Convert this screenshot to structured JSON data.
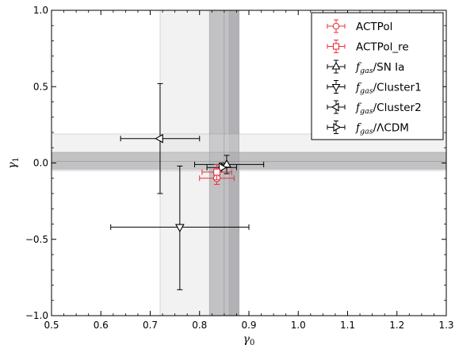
{
  "chart_data": {
    "type": "scatter",
    "title": "",
    "xlabel": "γ0",
    "ylabel": "γ1",
    "xlim": [
      0.5,
      1.3
    ],
    "ylim": [
      -1.0,
      1.0
    ],
    "xticks": [
      "0.5",
      "0.6",
      "0.7",
      "0.8",
      "0.9",
      "1.0",
      "1.1",
      "1.2",
      "1.3"
    ],
    "yticks": [
      "−1.0",
      "−0.5",
      "0.0",
      "0.5",
      "1.0"
    ],
    "grid": false,
    "legend_position": "top-right",
    "bands": [
      {
        "axis": "x",
        "range": [
          0.82,
          0.88
        ],
        "color": "#9a9a9e",
        "opacity": 0.7
      },
      {
        "axis": "y",
        "range": [
          -0.04,
          0.07
        ],
        "color": "#9a9a9e",
        "opacity": 0.7
      },
      {
        "axis": "x",
        "range": [
          0.72,
          0.86
        ],
        "color": "#e2e2e2",
        "opacity": 0.45
      },
      {
        "axis": "y",
        "range": [
          -0.05,
          0.19
        ],
        "color": "#e2e2e2",
        "opacity": 0.45
      },
      {
        "axis": "x",
        "range": [
          0.82,
          0.88
        ],
        "color": "#9a9a9e",
        "opacity": 0.18
      },
      {
        "axis": "y",
        "range": [
          -0.04,
          0.07
        ],
        "color": "#9a9a9e",
        "opacity": 0.18
      }
    ],
    "series": [
      {
        "name": "ACTPol",
        "marker": "circle",
        "color": "#e8303a",
        "x": 0.835,
        "y": -0.1,
        "xerr": [
          0.035,
          0.035
        ],
        "yerr": [
          0.04,
          0.04
        ]
      },
      {
        "name": "ACTPol_re",
        "marker": "square",
        "color": "#e8303a",
        "x": 0.835,
        "y": -0.06,
        "xerr": [
          0.03,
          0.03
        ],
        "yerr": [
          0.05,
          0.05
        ]
      },
      {
        "name": "SN Ia",
        "prefix": "f",
        "subscript": "gas",
        "marker": "triangle-up",
        "color": "#000000",
        "x": 0.855,
        "y": -0.01,
        "xerr": [
          0.065,
          0.075
        ],
        "yerr": [
          0.06,
          0.06
        ]
      },
      {
        "name": "Cluster1",
        "prefix": "f",
        "subscript": "gas",
        "marker": "triangle-down",
        "color": "#000000",
        "x": 0.76,
        "y": -0.42,
        "xerr": [
          0.14,
          0.14
        ],
        "yerr": [
          0.41,
          0.4
        ]
      },
      {
        "name": "Cluster2",
        "prefix": "f",
        "subscript": "gas",
        "marker": "triangle-left",
        "color": "#000000",
        "x": 0.72,
        "y": 0.16,
        "xerr": [
          0.08,
          0.08
        ],
        "yerr": [
          0.36,
          0.36
        ]
      },
      {
        "name": "ΛCDM",
        "prefix": "f",
        "subscript": "gas",
        "marker": "triangle-right",
        "color": "#000000",
        "x": 0.845,
        "y": -0.03,
        "xerr": [
          0.03,
          0.03
        ],
        "yerr": [
          0.03,
          0.03
        ]
      }
    ]
  }
}
